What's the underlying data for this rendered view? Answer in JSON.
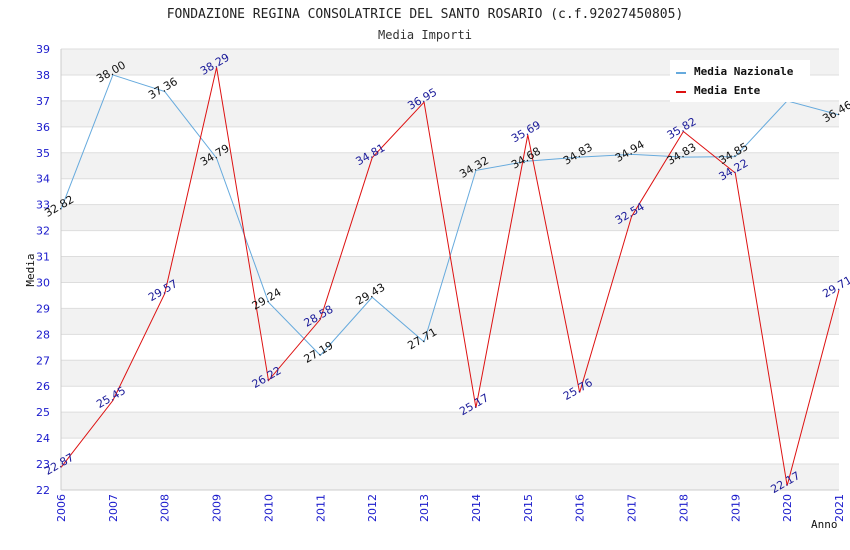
{
  "chart_data": {
    "type": "line",
    "title": "FONDAZIONE REGINA CONSOLATRICE DEL SANTO ROSARIO (c.f.92027450805)",
    "subtitle": "Media Importi",
    "ylabel": "Media",
    "xlabel": "Anno",
    "ylim": [
      22,
      39
    ],
    "yticks": [
      "22",
      "23",
      "24",
      "25",
      "26",
      "27",
      "28",
      "29",
      "30",
      "31",
      "32",
      "33",
      "34",
      "35",
      "36",
      "37",
      "38",
      "39"
    ],
    "categories": [
      "2006",
      "2007",
      "2008",
      "2009",
      "2010",
      "2011",
      "2012",
      "2013",
      "2014",
      "2015",
      "2016",
      "2017",
      "2018",
      "2019",
      "2020",
      "2021"
    ],
    "series": [
      {
        "name": "Media Nazionale",
        "color": "#66aadd",
        "values": [
          32.82,
          38.0,
          37.36,
          34.79,
          29.24,
          27.19,
          29.43,
          27.71,
          34.32,
          34.68,
          34.83,
          34.94,
          34.83,
          34.85,
          37.0,
          36.46
        ],
        "labels": [
          "32.82",
          "38.00",
          "37.36",
          "34.79",
          "29.24",
          "27.19",
          "29.43",
          "27.71",
          "34.32",
          "34.68",
          "34.83",
          "34.94",
          "34.83",
          "34.85",
          "",
          "36.46"
        ]
      },
      {
        "name": "Media Ente",
        "color": "#dd1111",
        "values": [
          22.87,
          25.45,
          29.57,
          38.29,
          26.22,
          28.58,
          34.81,
          36.95,
          25.17,
          35.69,
          25.76,
          32.54,
          35.82,
          34.22,
          22.17,
          29.71
        ],
        "labels": [
          "22.87",
          "25.45",
          "29.57",
          "38.29",
          "26.22",
          "28.58",
          "34.81",
          "36.95",
          "25.17",
          "35.69",
          "25.76",
          "32.54",
          "35.82",
          "34.22",
          "22.17",
          "29.71"
        ]
      }
    ],
    "legend_position": "top-right"
  }
}
